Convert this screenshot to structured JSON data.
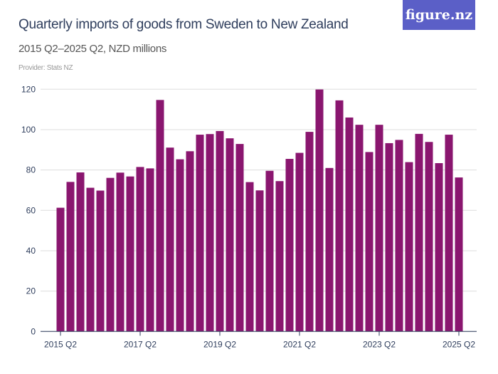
{
  "header": {
    "title": "Quarterly imports of goods from Sweden to New Zealand",
    "subtitle": "2015 Q2–2025 Q2, NZD millions",
    "provider": "Provider: Stats NZ",
    "logo": "figure.nz"
  },
  "colors": {
    "bar": "#8a166f",
    "logo_bg": "#5b5fc7",
    "grid": "#dddddd"
  },
  "chart_data": {
    "type": "bar",
    "title": "Quarterly imports of goods from Sweden to New Zealand",
    "ylim": [
      0,
      120
    ],
    "yticks": [
      0,
      20,
      40,
      60,
      80,
      100,
      120
    ],
    "grid": true,
    "xtick_labels": [
      "2015 Q2",
      "2017 Q2",
      "2019 Q2",
      "2021 Q2",
      "2023 Q2",
      "2025 Q2"
    ],
    "categories": [
      "2015 Q2",
      "2015 Q3",
      "2015 Q4",
      "2016 Q1",
      "2016 Q2",
      "2016 Q3",
      "2016 Q4",
      "2017 Q1",
      "2017 Q2",
      "2017 Q3",
      "2017 Q4",
      "2018 Q1",
      "2018 Q2",
      "2018 Q3",
      "2018 Q4",
      "2019 Q1",
      "2019 Q2",
      "2019 Q3",
      "2019 Q4",
      "2020 Q1",
      "2020 Q2",
      "2020 Q3",
      "2020 Q4",
      "2021 Q1",
      "2021 Q2",
      "2021 Q3",
      "2021 Q4",
      "2022 Q1",
      "2022 Q2",
      "2022 Q3",
      "2022 Q4",
      "2023 Q1",
      "2023 Q2",
      "2023 Q3",
      "2023 Q4",
      "2024 Q1",
      "2024 Q2",
      "2024 Q3",
      "2024 Q4",
      "2025 Q1",
      "2025 Q2"
    ],
    "values": [
      61.3,
      74.1,
      78.8,
      71.2,
      69.8,
      76.1,
      78.7,
      76.8,
      81.5,
      80.8,
      114.7,
      91.1,
      85.3,
      89.3,
      97.5,
      97.8,
      99.3,
      95.7,
      92.9,
      74.0,
      69.9,
      79.6,
      74.5,
      85.5,
      88.5,
      98.9,
      119.9,
      81.0,
      114.5,
      106.0,
      102.4,
      88.9,
      102.4,
      93.3,
      94.9,
      83.9,
      97.9,
      93.9,
      83.4,
      97.5,
      76.3
    ]
  }
}
